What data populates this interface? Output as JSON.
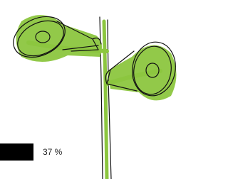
{
  "progress": {
    "value": 37,
    "label": "37 %"
  }
}
